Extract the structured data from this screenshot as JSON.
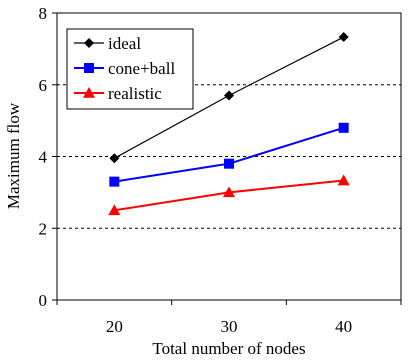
{
  "chart_data": {
    "type": "line",
    "xlabel": "Total number of nodes",
    "ylabel": "Maximum flow",
    "x": [
      20,
      30,
      40
    ],
    "x_ticks": [
      "20",
      "30",
      "40"
    ],
    "ylim": [
      0,
      8
    ],
    "y_ticks": [
      "0",
      "2",
      "4",
      "6",
      "8"
    ],
    "grid": "horizontal dashed",
    "legend_position": "top-left",
    "series": [
      {
        "name": "ideal",
        "values": [
          3.95,
          5.7,
          7.33
        ],
        "color": "#000000",
        "marker": "diamond"
      },
      {
        "name": "cone+ball",
        "values": [
          3.3,
          3.8,
          4.8
        ],
        "color": "#0000ff",
        "marker": "square"
      },
      {
        "name": "realistic",
        "values": [
          2.5,
          3.0,
          3.33
        ],
        "color": "#ff0000",
        "marker": "triangle"
      }
    ]
  }
}
